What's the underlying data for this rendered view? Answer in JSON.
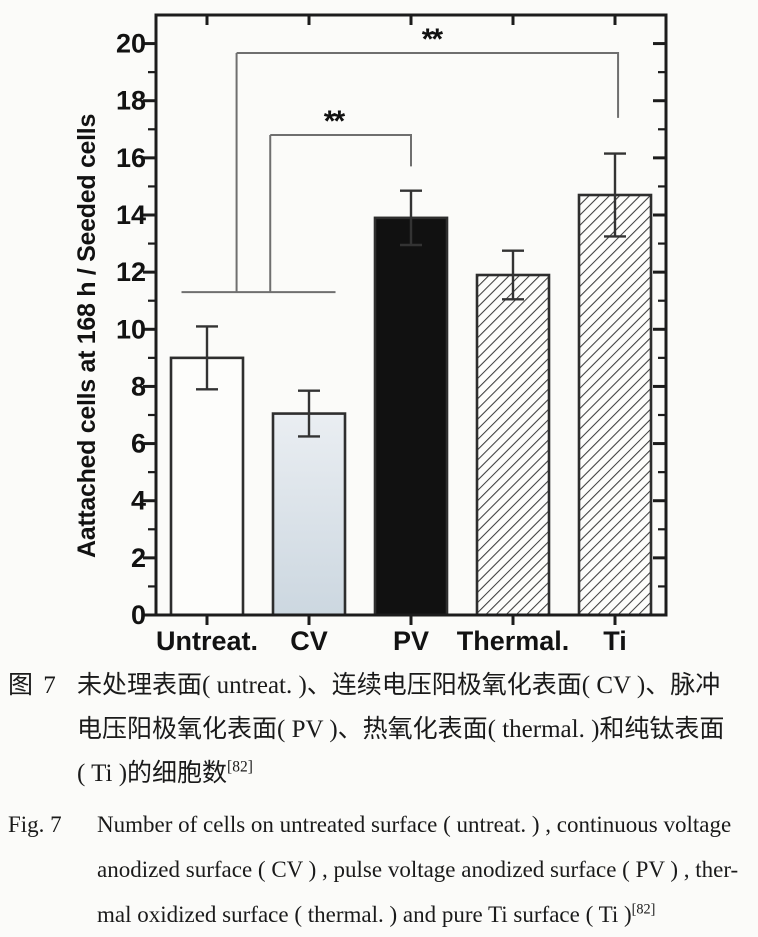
{
  "figure": {
    "captions": {
      "zh": {
        "label": "图 7",
        "lines": [
          "未处理表面( untreat. )、连续电压阳极氧化表面( CV )、脉冲",
          "电压阳极氧化表面( PV )、热氧化表面( thermal. )和纯钛表面",
          "( Ti )的细胞数"
        ],
        "ref": "[82]"
      },
      "en": {
        "label": "Fig. 7",
        "lines": [
          "Number of cells on untreated surface ( untreat. ) , continuous voltage",
          "anodized surface ( CV ) , pulse voltage anodized surface ( PV ) , ther-",
          "mal oxidized surface ( thermal. ) and pure Ti surface ( Ti )"
        ],
        "ref": "[82]"
      }
    }
  },
  "chart_data": {
    "type": "bar",
    "title": "",
    "xlabel": "",
    "ylabel": "Aattached cells at 168 h / Seeded cells",
    "categories": [
      "Untreat.",
      "CV",
      "PV",
      "Thermal.",
      "Ti"
    ],
    "values": [
      9.0,
      7.05,
      13.9,
      11.9,
      14.7
    ],
    "errors": [
      1.1,
      0.8,
      0.95,
      0.85,
      1.45
    ],
    "bar_styles": [
      "white",
      "lightblue",
      "black",
      "hatch",
      "hatch"
    ],
    "ylim": [
      0,
      21
    ],
    "ytick_labels": [
      "0",
      "2",
      "4",
      "6",
      "8",
      "10",
      "12",
      "14",
      "16",
      "18",
      "20"
    ],
    "ytick_minor": [
      1,
      3,
      5,
      7,
      9,
      11,
      13,
      15,
      17,
      19
    ],
    "grid": false,
    "legend": "none",
    "colors": {
      "axis": "#1c1c1c",
      "bar_outline": "#2e2e2e",
      "white_bar": "#fdfdfb",
      "black_bar": "#111111",
      "cv_fill_top": "#eaeef2",
      "cv_fill_bottom": "#ccd7e0",
      "hatch_line": "#3d3d3d",
      "error_bar": "#333333",
      "bracket": "#6f6f6f",
      "text": "#121212"
    },
    "significance": {
      "base_line": {
        "y": 11.3,
        "u1": -0.25,
        "u2": 1.26
      },
      "risers": [
        {
          "u": 0.29,
          "y1": 11.3,
          "y2": 19.67
        },
        {
          "u": 0.62,
          "y1": 11.3,
          "y2": 16.8
        }
      ],
      "brackets": [
        {
          "label": "**",
          "u1": 0.29,
          "u2": 4.03,
          "y": 19.67,
          "drop_to": 17.4,
          "label_u": 2.2
        },
        {
          "label": "**",
          "u1": 0.62,
          "u2": 2.0,
          "y": 16.8,
          "drop_to": 15.7,
          "label_u": 1.24
        }
      ]
    }
  }
}
